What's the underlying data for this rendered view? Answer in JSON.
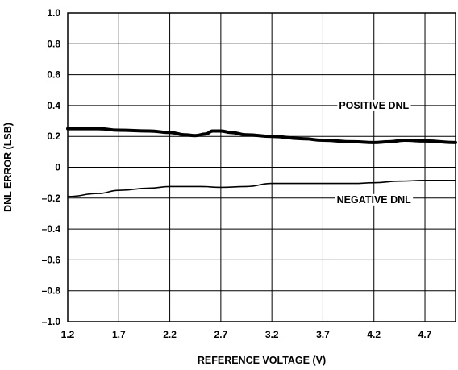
{
  "chart_data": {
    "type": "line",
    "title": "",
    "xlabel": "REFERENCE VOLTAGE (V)",
    "ylabel": "DNL ERROR (LSB)",
    "xlim": [
      1.2,
      5.0
    ],
    "ylim": [
      -1.0,
      1.0
    ],
    "x_ticks": [
      1.2,
      1.7,
      2.2,
      2.7,
      3.2,
      3.7,
      4.2,
      4.7
    ],
    "x_tick_labels": [
      "1.2",
      "1.7",
      "2.2",
      "2.7",
      "3.2",
      "3.7",
      "4.2",
      "4.7"
    ],
    "y_ticks": [
      1.0,
      0.8,
      0.6,
      0.4,
      0.2,
      0,
      -0.2,
      -0.4,
      -0.6,
      -0.8,
      -1.0
    ],
    "y_tick_labels": [
      "1.0",
      "0.8",
      "0.6",
      "0.4",
      "0.2",
      "0",
      "–0.2",
      "–0.4",
      "–0.6",
      "–0.8",
      "–1.0"
    ],
    "grid": true,
    "series": [
      {
        "name": "POSITIVE DNL",
        "color": "#000000",
        "x": [
          1.2,
          1.5,
          1.7,
          2.0,
          2.2,
          2.35,
          2.45,
          2.55,
          2.62,
          2.7,
          2.8,
          2.95,
          3.2,
          3.5,
          3.7,
          4.0,
          4.2,
          4.35,
          4.5,
          4.7,
          5.0
        ],
        "y": [
          0.25,
          0.25,
          0.24,
          0.235,
          0.225,
          0.21,
          0.205,
          0.215,
          0.235,
          0.235,
          0.225,
          0.21,
          0.2,
          0.185,
          0.175,
          0.165,
          0.16,
          0.165,
          0.175,
          0.17,
          0.16
        ]
      },
      {
        "name": "NEGATIVE DNL",
        "color": "#000000",
        "x": [
          1.2,
          1.5,
          1.7,
          2.0,
          2.2,
          2.5,
          2.7,
          2.95,
          3.2,
          3.5,
          3.7,
          4.0,
          4.2,
          4.45,
          4.7,
          5.0
        ],
        "y": [
          -0.19,
          -0.17,
          -0.15,
          -0.135,
          -0.125,
          -0.125,
          -0.13,
          -0.125,
          -0.105,
          -0.105,
          -0.105,
          -0.105,
          -0.1,
          -0.09,
          -0.085,
          -0.085
        ]
      }
    ],
    "annotations": [
      {
        "text": "POSITIVE DNL",
        "series": "POSITIVE DNL"
      },
      {
        "text": "NEGATIVE DNL",
        "series": "NEGATIVE DNL"
      }
    ]
  }
}
